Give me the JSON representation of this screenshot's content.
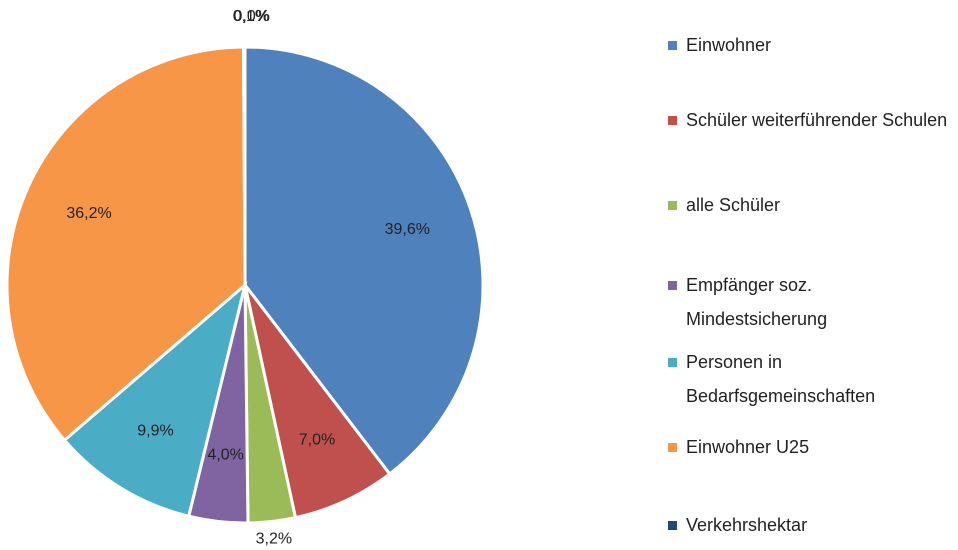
{
  "chart_data": {
    "type": "pie",
    "categories": [
      "Einwohner",
      "Schüler weiterführender Schulen",
      "alle Schüler",
      "Empfänger soz. Mindestsicherung",
      "Personen in Bedarfsgemeinschaften",
      "Einwohner U25",
      "Verkehrshektar",
      null
    ],
    "values": [
      39.6,
      7.0,
      3.2,
      4.0,
      9.9,
      36.2,
      0.1,
      0.0
    ],
    "value_labels": [
      "39,6%",
      "7,0%",
      "3,2%",
      "4,0%",
      "9,9%",
      "36,2%",
      "0,1%",
      "0,0%"
    ],
    "colors": [
      "#4f81bd",
      "#c0504d",
      "#9bbb59",
      "#8064a2",
      "#4bacc6",
      "#f79646",
      "#1f497d",
      "#a5a5a5"
    ],
    "legend": "right"
  }
}
